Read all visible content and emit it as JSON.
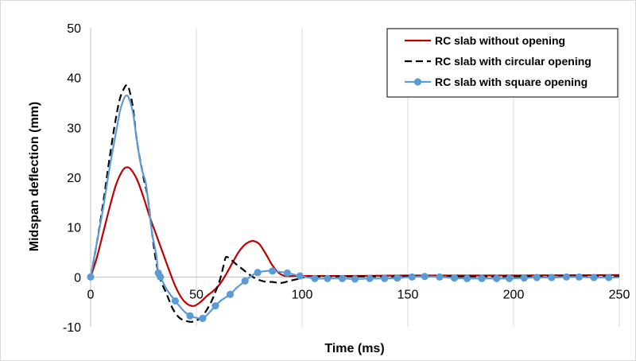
{
  "chart_data": {
    "type": "line",
    "title": "",
    "xlabel": "Time (ms)",
    "ylabel": "Midspan deflection (mm)",
    "xlim": [
      0,
      250
    ],
    "ylim": [
      -10,
      50
    ],
    "x_ticks": [
      0,
      50,
      100,
      150,
      200,
      250
    ],
    "y_ticks": [
      -10,
      0,
      10,
      20,
      30,
      40,
      50
    ],
    "grid": "vertical",
    "legend_position": "top-right",
    "series": [
      {
        "name": "RC slab without opening",
        "color": "#c00000",
        "style": "solid",
        "marker": "none",
        "points": [
          [
            0,
            0
          ],
          [
            3,
            4
          ],
          [
            6,
            9
          ],
          [
            9,
            14
          ],
          [
            12,
            18.5
          ],
          [
            15,
            21.3
          ],
          [
            17,
            22
          ],
          [
            19,
            21.6
          ],
          [
            22,
            19.5
          ],
          [
            25,
            16
          ],
          [
            28,
            12
          ],
          [
            31,
            8.5
          ],
          [
            34,
            5
          ],
          [
            37,
            1.5
          ],
          [
            40,
            -1.8
          ],
          [
            43,
            -4.2
          ],
          [
            46,
            -5.5
          ],
          [
            49,
            -5.8
          ],
          [
            52,
            -5
          ],
          [
            55,
            -3.8
          ],
          [
            58,
            -2.8
          ],
          [
            61,
            -1.5
          ],
          [
            64,
            0.5
          ],
          [
            67,
            2.8
          ],
          [
            70,
            5
          ],
          [
            73,
            6.5
          ],
          [
            76,
            7.2
          ],
          [
            78,
            7.1
          ],
          [
            80,
            6.5
          ],
          [
            83,
            4.5
          ],
          [
            86,
            2.3
          ],
          [
            89,
            0.8
          ],
          [
            92,
            0.2
          ],
          [
            96,
            0.2
          ],
          [
            100,
            0.2
          ],
          [
            120,
            0.2
          ],
          [
            150,
            0.3
          ],
          [
            200,
            0.3
          ],
          [
            250,
            0.4
          ]
        ]
      },
      {
        "name": "RC slab with circular opening",
        "color": "#000000",
        "style": "dashed",
        "marker": "none",
        "points": [
          [
            0,
            0
          ],
          [
            3,
            7
          ],
          [
            6,
            15
          ],
          [
            9,
            24
          ],
          [
            12,
            32
          ],
          [
            14,
            36
          ],
          [
            16,
            38
          ],
          [
            17,
            38.5
          ],
          [
            18,
            38
          ],
          [
            20,
            34
          ],
          [
            22,
            27
          ],
          [
            25,
            20
          ],
          [
            27,
            16
          ],
          [
            29,
            9
          ],
          [
            31,
            3
          ],
          [
            33,
            -0.5
          ],
          [
            36,
            -3.5
          ],
          [
            39,
            -6.5
          ],
          [
            42,
            -8.2
          ],
          [
            45,
            -8.8
          ],
          [
            48,
            -9
          ],
          [
            51,
            -8.5
          ],
          [
            54,
            -7.2
          ],
          [
            57,
            -5
          ],
          [
            59,
            -3
          ],
          [
            61,
            -0.8
          ],
          [
            63,
            2.5
          ],
          [
            64,
            4
          ],
          [
            66,
            3.6
          ],
          [
            69,
            2.5
          ],
          [
            72,
            1.5
          ],
          [
            75,
            0.5
          ],
          [
            78,
            -0.3
          ],
          [
            82,
            -0.9
          ],
          [
            86,
            -1
          ],
          [
            90,
            -1.2
          ],
          [
            94,
            -0.8
          ],
          [
            98,
            -0.4
          ],
          [
            102,
            0
          ],
          [
            110,
            0.1
          ],
          [
            130,
            0.1
          ],
          [
            160,
            0.1
          ],
          [
            200,
            0.1
          ],
          [
            250,
            0.1
          ]
        ]
      },
      {
        "name": "RC slab with square opening",
        "color": "#5b9bd5",
        "style": "solid",
        "marker": "circle",
        "points": [
          [
            0,
            0
          ],
          [
            32,
            0.8
          ],
          [
            33,
            0
          ],
          [
            40,
            -4.8
          ],
          [
            47,
            -7.8
          ],
          [
            53,
            -8.3
          ],
          [
            59,
            -5.8
          ],
          [
            66,
            -3.5
          ],
          [
            73,
            -0.8
          ],
          [
            79,
            0.9
          ],
          [
            86,
            1.2
          ],
          [
            93,
            0.8
          ],
          [
            99,
            0.2
          ],
          [
            106,
            -0.3
          ],
          [
            112,
            -0.3
          ],
          [
            119,
            -0.3
          ],
          [
            125,
            -0.4
          ],
          [
            132,
            -0.3
          ],
          [
            139,
            -0.3
          ],
          [
            145,
            -0.2
          ],
          [
            152,
            0
          ],
          [
            158,
            0.1
          ],
          [
            165,
            0
          ],
          [
            172,
            -0.2
          ],
          [
            178,
            -0.3
          ],
          [
            185,
            -0.3
          ],
          [
            192,
            -0.3
          ],
          [
            198,
            -0.3
          ],
          [
            205,
            -0.2
          ],
          [
            211,
            -0.1
          ],
          [
            218,
            -0.1
          ],
          [
            225,
            0
          ],
          [
            231,
            0
          ],
          [
            238,
            -0.1
          ],
          [
            245,
            -0.1
          ]
        ],
        "curve": [
          [
            0,
            0
          ],
          [
            3,
            7
          ],
          [
            6,
            14
          ],
          [
            9,
            22
          ],
          [
            12,
            29
          ],
          [
            14,
            33.5
          ],
          [
            16,
            36
          ],
          [
            17,
            36.4
          ],
          [
            18,
            36
          ],
          [
            20,
            33
          ],
          [
            22,
            27
          ],
          [
            24,
            22
          ],
          [
            26,
            19
          ],
          [
            27,
            16
          ],
          [
            29,
            9
          ],
          [
            31,
            4.5
          ],
          [
            32,
            0.8
          ],
          [
            33,
            0
          ],
          [
            36,
            -2.5
          ],
          [
            40,
            -4.8
          ],
          [
            44,
            -6.8
          ],
          [
            47,
            -7.8
          ],
          [
            50,
            -8.2
          ],
          [
            53,
            -8.3
          ],
          [
            56,
            -7.2
          ],
          [
            59,
            -5.8
          ],
          [
            62,
            -4.6
          ],
          [
            66,
            -3.5
          ],
          [
            69,
            -2.2
          ],
          [
            73,
            -0.8
          ],
          [
            76,
            0.2
          ],
          [
            79,
            0.9
          ],
          [
            83,
            1.2
          ],
          [
            86,
            1.2
          ],
          [
            90,
            1
          ],
          [
            93,
            0.8
          ],
          [
            96,
            0.5
          ],
          [
            99,
            0.2
          ],
          [
            106,
            -0.3
          ],
          [
            112,
            -0.3
          ],
          [
            119,
            -0.3
          ],
          [
            125,
            -0.4
          ],
          [
            132,
            -0.3
          ],
          [
            139,
            -0.3
          ],
          [
            145,
            -0.2
          ],
          [
            152,
            0
          ],
          [
            158,
            0.1
          ],
          [
            165,
            0
          ],
          [
            172,
            -0.2
          ],
          [
            178,
            -0.3
          ],
          [
            185,
            -0.3
          ],
          [
            192,
            -0.3
          ],
          [
            198,
            -0.3
          ],
          [
            205,
            -0.2
          ],
          [
            211,
            -0.1
          ],
          [
            218,
            -0.1
          ],
          [
            225,
            0
          ],
          [
            231,
            0
          ],
          [
            238,
            -0.1
          ],
          [
            245,
            -0.1
          ],
          [
            250,
            -0.1
          ]
        ]
      }
    ]
  }
}
